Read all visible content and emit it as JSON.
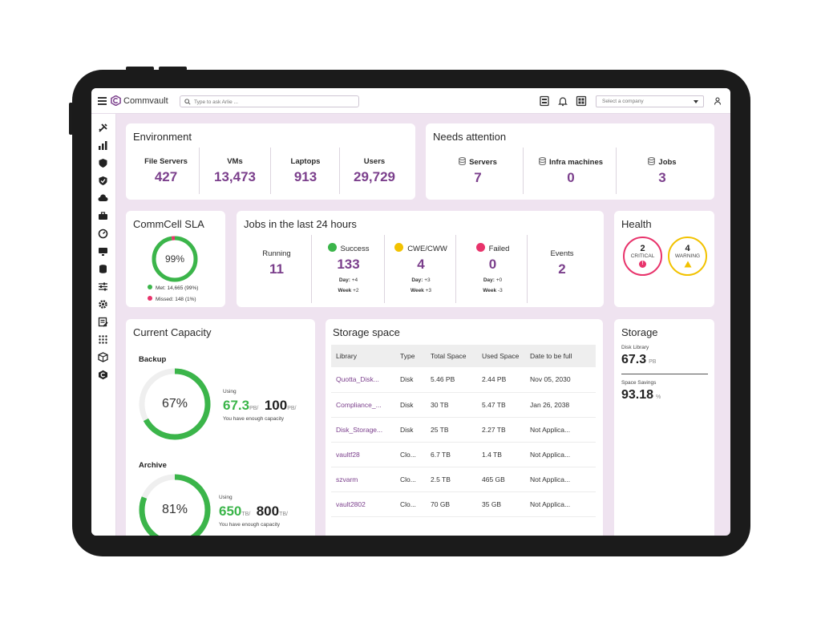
{
  "header": {
    "brand": "Commvault",
    "search_placeholder": "Type to ask Arlie ...",
    "company_select": "Select a company"
  },
  "environment": {
    "title": "Environment",
    "metrics": [
      {
        "label": "File Servers",
        "value": "427"
      },
      {
        "label": "VMs",
        "value": "13,473"
      },
      {
        "label": "Laptops",
        "value": "913"
      },
      {
        "label": "Users",
        "value": "29,729"
      }
    ]
  },
  "needs_attention": {
    "title": "Needs attention",
    "metrics": [
      {
        "label": "Servers",
        "value": "7"
      },
      {
        "label": "Infra machines",
        "value": "0"
      },
      {
        "label": "Jobs",
        "value": "3"
      }
    ]
  },
  "sla": {
    "title": "CommCell SLA",
    "percent": "99%",
    "percent_value": 99,
    "met": "Met: 14,665 (99%)",
    "missed": "Missed: 148 (1%)"
  },
  "jobs": {
    "title": "Jobs in the last 24 hours",
    "running": {
      "label": "Running",
      "value": "11"
    },
    "success": {
      "label": "Success",
      "value": "133",
      "day_label": "Day:",
      "day": "+4",
      "week_label": "Week",
      "week": "+2"
    },
    "cwe": {
      "label": "CWE/CWW",
      "value": "4",
      "day_label": "Day:",
      "day": "+3",
      "week_label": "Week",
      "week": "+3"
    },
    "failed": {
      "label": "Failed",
      "value": "0",
      "day_label": "Day:",
      "day": "+0",
      "week_label": "Week",
      "week": "-3"
    },
    "events": {
      "label": "Events",
      "value": "2"
    }
  },
  "health": {
    "title": "Health",
    "critical": {
      "value": "2",
      "label": "CRITICAL"
    },
    "warning": {
      "value": "4",
      "label": "WARNING"
    }
  },
  "capacity": {
    "title": "Current Capacity",
    "backup": {
      "label": "Backup",
      "percent": "67%",
      "percent_value": 67,
      "using_label": "Using",
      "used": "67.3",
      "used_unit": "PB/",
      "total": "100",
      "total_unit": "PB/",
      "note": "You have enough capacity"
    },
    "archive": {
      "label": "Archive",
      "percent": "81%",
      "percent_value": 81,
      "using_label": "Using",
      "used": "650",
      "used_unit": "TB/",
      "total": "800",
      "total_unit": "TB/",
      "note": "You have enough capacity"
    }
  },
  "storage_space": {
    "title": "Storage space",
    "columns": [
      "Library",
      "Type",
      "Total Space",
      "Used Space",
      "Date to be full"
    ],
    "rows": [
      [
        "Quotta_Disk...",
        "Disk",
        "5.46 PB",
        "2.44 PB",
        "Nov 05, 2030"
      ],
      [
        "Compliance_...",
        "Disk",
        "30 TB",
        "5.47 TB",
        "Jan 26, 2038"
      ],
      [
        "Disk_Storage...",
        "Disk",
        "25 TB",
        "2.27 TB",
        "Not Applica..."
      ],
      [
        "vaultf28",
        "Clo...",
        "6.7 TB",
        "1.4 TB",
        "Not Applica..."
      ],
      [
        "szvarm",
        "Clo...",
        "2.5 TB",
        "465 GB",
        "Not Applica..."
      ],
      [
        "vault2802",
        "Clo...",
        "70 GB",
        "35 GB",
        "Not Applica..."
      ]
    ]
  },
  "storage": {
    "title": "Storage",
    "disk_label": "Disk Library",
    "disk_value": "67.3",
    "disk_unit": "PB",
    "savings_label": "Space Savings",
    "savings_value": "93.18",
    "savings_unit": "%"
  },
  "colors": {
    "accent": "#7b3f8c",
    "green": "#3bb54a",
    "yellow": "#f2c200",
    "red": "#e8336b"
  }
}
